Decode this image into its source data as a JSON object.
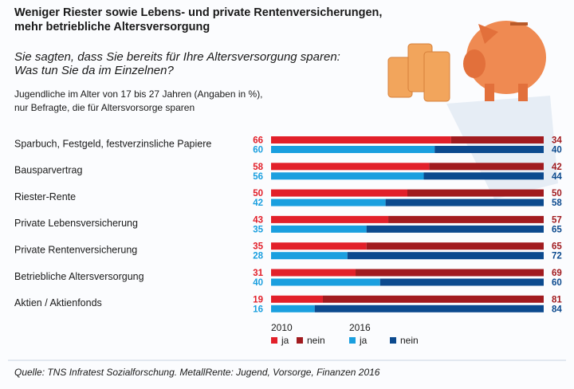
{
  "chart_data": {
    "type": "bar",
    "title": [
      "Weniger Riester sowie Lebens- und private Rentenversicherungen,",
      "mehr betriebliche Altersversorgung"
    ],
    "subtitle": [
      "Sie sagten, dass Sie bereits für Ihre Altersversorgung sparen:",
      "Was tun Sie da im Einzelnen?"
    ],
    "note": [
      "Jugendliche im Alter von 17 bis 27 Jahren (Angaben in %),",
      "nur Befragte, die für Altersvorsorge sparen"
    ],
    "source": "Quelle: TNS Infratest Sozialforschung. MetallRente: Jugend, Vorsorge, Finanzen 2016",
    "categories": [
      "Sparbuch, Festgeld, festverzinsliche Papiere",
      "Bausparvertrag",
      "Riester-Rente",
      "Private Lebensversicherung",
      "Private Rentenversicherung",
      "Betriebliche Altersversorgung",
      "Aktien / Aktienfonds"
    ],
    "xlim": [
      0,
      100
    ],
    "groups": [
      {
        "name": "2010",
        "series": [
          {
            "name": "ja",
            "color": "#e2202a",
            "values": [
              66,
              58,
              50,
              43,
              35,
              31,
              19
            ]
          },
          {
            "name": "nein",
            "color": "#a11b1f",
            "values": [
              34,
              42,
              50,
              57,
              65,
              69,
              81
            ]
          }
        ]
      },
      {
        "name": "2016",
        "series": [
          {
            "name": "ja",
            "color": "#1a9fdf",
            "values": [
              60,
              56,
              42,
              35,
              28,
              40,
              16
            ]
          },
          {
            "name": "nein",
            "color": "#0c4a8e",
            "values": [
              40,
              44,
              58,
              65,
              72,
              60,
              84
            ]
          }
        ]
      }
    ]
  }
}
